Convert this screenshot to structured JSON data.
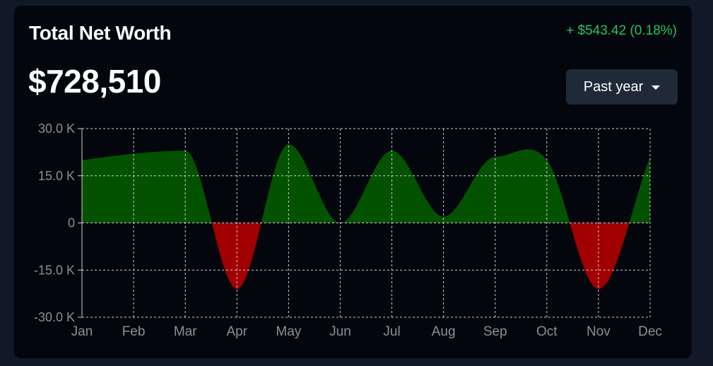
{
  "header": {
    "title": "Total Net Worth",
    "value": "$728,510",
    "change": "+ $543.42 (0.18%)",
    "range_label": "Past year"
  },
  "colors": {
    "positive": "#035200",
    "negative": "#a10000",
    "change_text": "#22c55e",
    "grid": "#cfcfcf",
    "tick_text": "#8b8f96"
  },
  "icons": {
    "range_caret": "caret-down-icon"
  },
  "chart_data": {
    "type": "area",
    "title": "",
    "xlabel": "",
    "ylabel": "",
    "categories": [
      "Jan",
      "Feb",
      "Mar",
      "Apr",
      "May",
      "Jun",
      "Jul",
      "Aug",
      "Sep",
      "Oct",
      "Nov",
      "Dec"
    ],
    "values": [
      20000,
      22000,
      23000,
      -21000,
      25000,
      0,
      23000,
      2000,
      21000,
      20000,
      -21000,
      21000
    ],
    "ylim": [
      -30000,
      30000
    ],
    "yticks": [
      30000,
      15000,
      0,
      -15000,
      -30000
    ],
    "ytick_labels": [
      "30.0 K",
      "15.0 K",
      "0",
      "-15.0 K",
      "-30.0 K"
    ],
    "grid": true,
    "legend": "none"
  }
}
